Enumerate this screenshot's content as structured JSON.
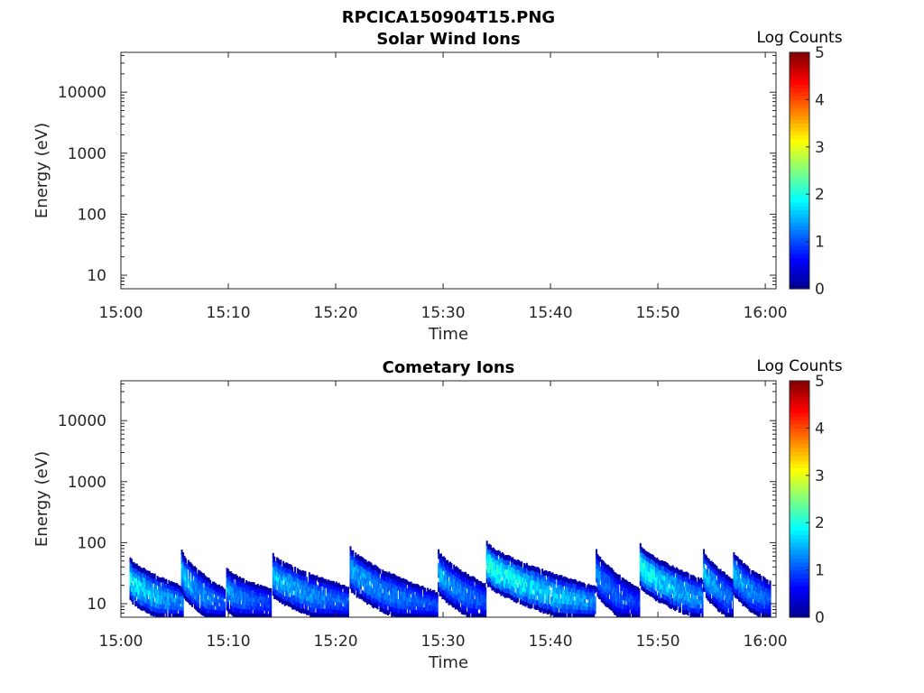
{
  "figure_title": "RPCICA150904T15.PNG",
  "colormap": [
    "#00008f",
    "#0000ff",
    "#0080ff",
    "#00ffff",
    "#80ff80",
    "#ffff00",
    "#ff8000",
    "#ff0000",
    "#800000"
  ],
  "chart_data": [
    {
      "type": "heatmap",
      "title": "Solar Wind Ions",
      "xlabel": "Time",
      "ylabel": "Energy (eV)",
      "x_ticks": [
        "15:00",
        "15:10",
        "15:20",
        "15:30",
        "15:40",
        "15:50",
        "16:00"
      ],
      "y_ticks": [
        "10",
        "100",
        "1000",
        "10000"
      ],
      "y_scale": "log",
      "ylim": [
        6,
        45000
      ],
      "xlim": [
        "15:00",
        "16:01"
      ],
      "colorbar_label": "Log Counts",
      "colorbar_ticks": [
        "0",
        "1",
        "2",
        "3",
        "4",
        "5"
      ],
      "clim": [
        0,
        5
      ],
      "bursts": []
    },
    {
      "type": "heatmap",
      "title": "Cometary Ions",
      "xlabel": "Time",
      "ylabel": "Energy (eV)",
      "x_ticks": [
        "15:00",
        "15:10",
        "15:20",
        "15:30",
        "15:40",
        "15:50",
        "16:00"
      ],
      "y_ticks": [
        "10",
        "100",
        "1000",
        "10000"
      ],
      "y_scale": "log",
      "ylim": [
        6,
        45000
      ],
      "xlim": [
        "15:00",
        "16:01"
      ],
      "colorbar_label": "Log Counts",
      "colorbar_ticks": [
        "0",
        "1",
        "2",
        "3",
        "4",
        "5"
      ],
      "clim": [
        0,
        5
      ],
      "bursts": [
        {
          "start": "15:00.8",
          "end": "15:05.8",
          "peak_energy_ev": 30,
          "end_energy_ev": 10,
          "max_log_counts": 2.0
        },
        {
          "start": "15:05.6",
          "end": "15:09.7",
          "peak_energy_ev": 40,
          "end_energy_ev": 9,
          "max_log_counts": 1.7
        },
        {
          "start": "15:09.8",
          "end": "15:14.0",
          "peak_energy_ev": 20,
          "end_energy_ev": 9,
          "max_log_counts": 1.5
        },
        {
          "start": "15:14.1",
          "end": "15:21.2",
          "peak_energy_ev": 35,
          "end_energy_ev": 10,
          "max_log_counts": 1.7
        },
        {
          "start": "15:21.3",
          "end": "15:29.5",
          "peak_energy_ev": 45,
          "end_energy_ev": 8,
          "max_log_counts": 1.6
        },
        {
          "start": "15:29.5",
          "end": "15:34.0",
          "peak_energy_ev": 40,
          "end_energy_ev": 11,
          "max_log_counts": 1.6
        },
        {
          "start": "15:34.0",
          "end": "15:44.2",
          "peak_energy_ev": 55,
          "end_energy_ev": 10,
          "max_log_counts": 2.2
        },
        {
          "start": "15:44.2",
          "end": "15:48.3",
          "peak_energy_ev": 40,
          "end_energy_ev": 9,
          "max_log_counts": 1.4
        },
        {
          "start": "15:48.3",
          "end": "15:54.2",
          "peak_energy_ev": 50,
          "end_energy_ev": 13,
          "max_log_counts": 2.1
        },
        {
          "start": "15:54.2",
          "end": "15:57.0",
          "peak_energy_ev": 40,
          "end_energy_ev": 13,
          "max_log_counts": 1.7
        },
        {
          "start": "15:57.0",
          "end": "16:00.5",
          "peak_energy_ev": 38,
          "end_energy_ev": 12,
          "max_log_counts": 1.7
        }
      ]
    }
  ]
}
